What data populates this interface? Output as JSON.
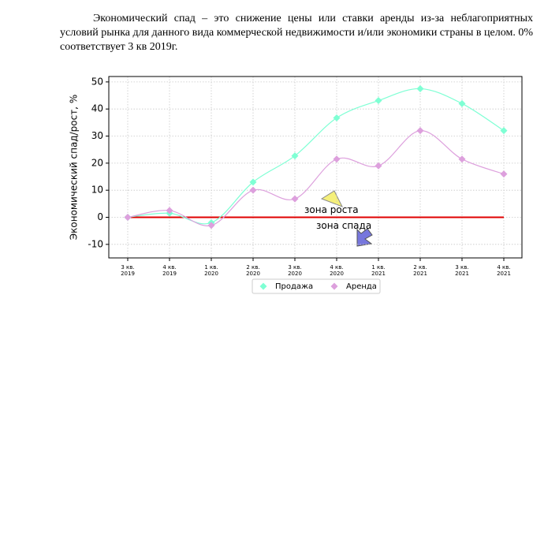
{
  "text": {
    "paragraph": "Экономический спад – это снижение цены или ставки аренды из-за неблагоприятных условий рынка для данного вида коммерческой недвижимости и/или экономики страны в целом. 0% соответствует 3 кв 2019г."
  },
  "chart_data": {
    "type": "line",
    "y_label": "Экономический спад/рост, %",
    "categories": [
      "3 кв.\n2019",
      "4 кв.\n2019",
      "1 кв.\n2020",
      "2 кв.\n2020",
      "3 кв.\n2020",
      "4 кв.\n2020",
      "1 кв.\n2021",
      "2 кв.\n2021",
      "3 кв.\n2021",
      "4 кв.\n2021"
    ],
    "series": [
      {
        "name": "Продажа",
        "color": "#7fffd4",
        "values": [
          0,
          1.5,
          -2,
          13,
          22.7,
          36.7,
          43.1,
          47.5,
          42,
          32
        ]
      },
      {
        "name": "Аренда",
        "color": "#dda0dd",
        "values": [
          0,
          2.5,
          -3,
          10,
          6.8,
          21.5,
          19,
          32,
          21.5,
          16
        ]
      }
    ],
    "reference_line": {
      "value": 0,
      "color": "#e00000"
    },
    "annotations": [
      "зона роста",
      "зона спада"
    ],
    "ylim": [
      -15,
      52
    ],
    "yticks": [
      -10,
      0,
      10,
      20,
      30,
      40,
      50
    ],
    "grid": true
  }
}
